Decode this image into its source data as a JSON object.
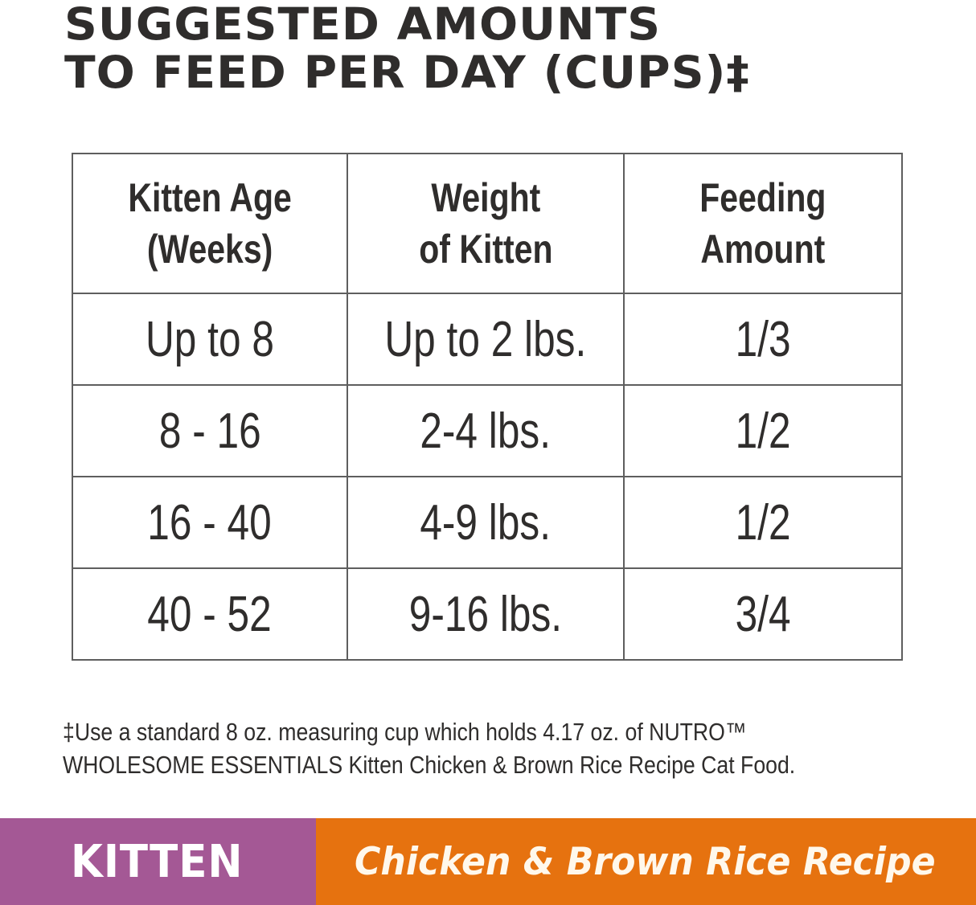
{
  "title": {
    "line1": "SUGGESTED AMOUNTS",
    "line2": "TO FEED PER DAY (CUPS)‡"
  },
  "table": {
    "headers": [
      {
        "line1": "Kitten Age",
        "line2": "(Weeks)"
      },
      {
        "line1": "Weight",
        "line2": "of Kitten"
      },
      {
        "line1": "Feeding",
        "line2": "Amount"
      }
    ],
    "rows": [
      {
        "age": "Up to 8",
        "weight": "Up to 2 lbs.",
        "amount": "1/3"
      },
      {
        "age": "8 - 16",
        "weight": "2-4 lbs.",
        "amount": "1/2"
      },
      {
        "age": "16 - 40",
        "weight": "4-9 lbs.",
        "amount": "1/2"
      },
      {
        "age": "40 - 52",
        "weight": "9-16 lbs.",
        "amount": "3/4"
      }
    ]
  },
  "footnote": {
    "line1": "‡Use a standard 8 oz. measuring cup which holds 4.17 oz. of NUTRO™",
    "line2": "WHOLESOME ESSENTIALS Kitten Chicken & Brown Rice Recipe Cat Food."
  },
  "banner": {
    "life_stage": "KITTEN",
    "recipe": "Chicken & Brown Rice Recipe",
    "colors": {
      "life_stage_bg": "#a45895",
      "recipe_bg": "#e6720f"
    }
  },
  "chart_data": {
    "type": "table",
    "title": "Suggested Amounts to Feed Per Day (Cups)‡",
    "columns": [
      "Kitten Age (Weeks)",
      "Weight of Kitten",
      "Feeding Amount"
    ],
    "rows": [
      [
        "Up to 8",
        "Up to 2 lbs.",
        "1/3"
      ],
      [
        "8 - 16",
        "2-4 lbs.",
        "1/2"
      ],
      [
        "16 - 40",
        "4-9 lbs.",
        "1/2"
      ],
      [
        "40 - 52",
        "9-16 lbs.",
        "3/4"
      ]
    ]
  }
}
